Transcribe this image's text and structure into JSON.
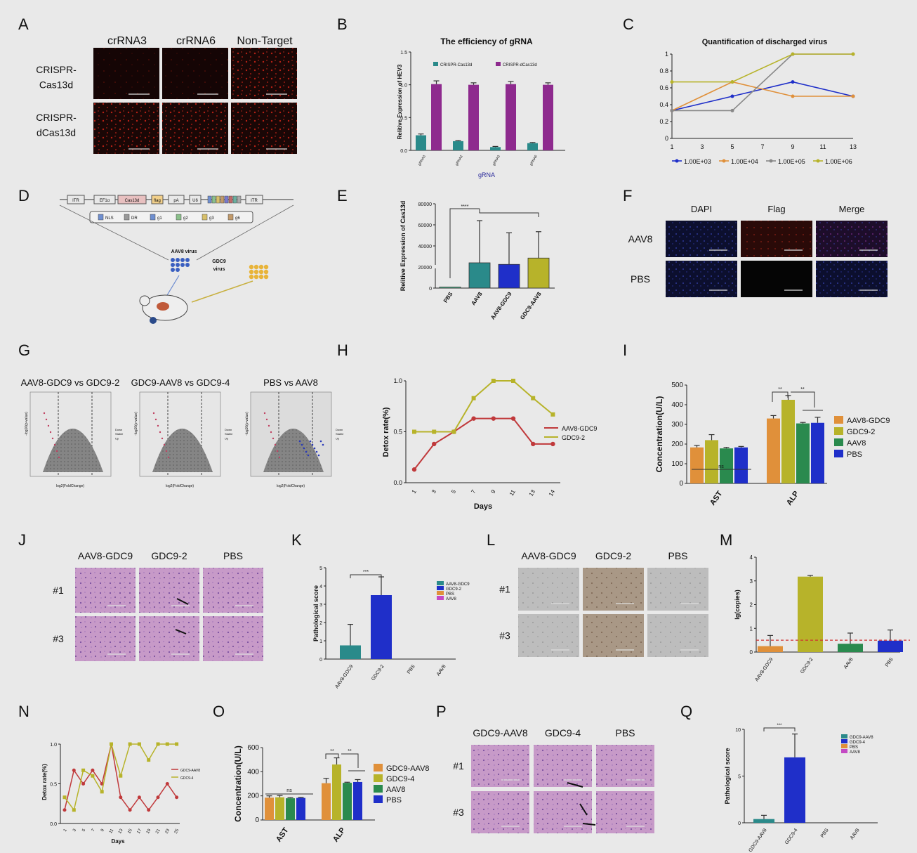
{
  "colors": {
    "bg": "#e9e9e9",
    "teal": "#2a8a8a",
    "purple": "#8e2a8e",
    "blue": "#1f2fc9",
    "yellow": "#b7b32a",
    "green": "#2a8a4e",
    "orange": "#e0903a",
    "red": "#c0393b",
    "gray": "#888888",
    "mint": "#4cc79a",
    "pink": "#c44ac4",
    "dark": "#111111"
  },
  "panels": {
    "A": {
      "letter": "A",
      "cols": [
        "crRNA3",
        "crRNA6",
        "Non-Target"
      ],
      "rows": [
        "CRISPR-\nCas13d",
        "CRISPR-\ndCas13d"
      ]
    },
    "D": {
      "letter": "D",
      "construct": [
        "ITR",
        "EF1α",
        "Cas13d",
        "flag",
        "pA",
        "U6",
        "ITR"
      ],
      "legend": [
        "NLS",
        "DR",
        "g1",
        "g2",
        "g3",
        "g6"
      ],
      "aav_label": "AAV8 virus",
      "gdc_label": "GDC9\nvirus"
    },
    "F": {
      "letter": "F",
      "cols": [
        "DAPI",
        "Flag",
        "Merge"
      ],
      "rows": [
        "AAV8",
        "PBS"
      ]
    },
    "G": {
      "letter": "G",
      "titles": [
        "AAV8-GDC9 vs GDC9-2",
        "GDC9-AAV8 vs GDC9-4",
        "PBS vs AAV8"
      ],
      "xlabels": [
        "log2(FoldChange)",
        "log2(FoldChange)",
        "log2(FoldChange)"
      ],
      "ylabels": [
        "-log10(p-value)",
        "-log10(p-value)",
        "-log10(p-value)"
      ],
      "side": [
        "Down\nStable\nUp",
        "Down\nStable\nUp",
        "Down\nStable\nUp"
      ]
    },
    "J": {
      "letter": "J",
      "cols": [
        "AAV8-GDC9",
        "GDC9-2",
        "PBS"
      ],
      "rows": [
        "#1",
        "#3"
      ]
    },
    "L": {
      "letter": "L",
      "cols": [
        "AAV8-GDC9",
        "GDC9-2",
        "PBS"
      ],
      "rows": [
        "#1",
        "#3"
      ]
    },
    "P": {
      "letter": "P",
      "cols": [
        "GDC9-AAV8",
        "GDC9-4",
        "PBS"
      ],
      "rows": [
        "#1",
        "#3"
      ]
    }
  },
  "chart_data": [
    {
      "id": "B",
      "type": "bar",
      "letter": "B",
      "title": "The efficiency of gRNA",
      "xlabel": "gRNA",
      "ylabel": "Relitive Expression of HEV3",
      "categories": [
        "gRNA3",
        "gRNA2",
        "gRNA3",
        "gRNA6"
      ],
      "series": [
        {
          "name": "CRISPR-Cas13d",
          "values": [
            0.23,
            0.14,
            0.05,
            0.11
          ]
        },
        {
          "name": "CRISPR-dCas13d",
          "values": [
            1.01,
            1.0,
            1.01,
            1.0
          ]
        }
      ],
      "error": [
        [
          0.02,
          0.01,
          0.01,
          0.01
        ],
        [
          0.05,
          0.03,
          0.04,
          0.03
        ]
      ],
      "ylim": [
        0,
        1.5
      ],
      "yticks": [
        "0.0",
        "0.5",
        "1.0",
        "1.5"
      ]
    },
    {
      "id": "C",
      "type": "line",
      "letter": "C",
      "title": "Quantification of discharged virus",
      "x": [
        1,
        3,
        5,
        7,
        9,
        11,
        13
      ],
      "xticks": [
        "1",
        "3",
        "5",
        "7",
        "9",
        "11",
        "13"
      ],
      "ylim": [
        0,
        1
      ],
      "yticks": [
        "0",
        "0.2",
        "0.4",
        "0.6",
        "0.8",
        "1"
      ],
      "series": [
        {
          "name": "1.00E+03",
          "points": [
            [
              1,
              0.33
            ],
            [
              5,
              0.5
            ],
            [
              9,
              0.67
            ],
            [
              13,
              0.5
            ]
          ]
        },
        {
          "name": "1.00E+04",
          "points": [
            [
              1,
              0.33
            ],
            [
              5,
              0.67
            ],
            [
              9,
              0.5
            ],
            [
              13,
              0.5
            ]
          ]
        },
        {
          "name": "1.00E+05",
          "points": [
            [
              1,
              0.33
            ],
            [
              5,
              0.33
            ],
            [
              9,
              1.0
            ],
            [
              13,
              1.0
            ]
          ]
        },
        {
          "name": "1.00E+06",
          "points": [
            [
              1,
              0.67
            ],
            [
              5,
              0.67
            ],
            [
              9,
              1.0
            ],
            [
              13,
              1.0
            ]
          ]
        }
      ]
    },
    {
      "id": "E",
      "type": "bar",
      "letter": "E",
      "ylabel": "Relitive Expression of Cas13d",
      "categories": [
        "PBS",
        "AAV8",
        "AAV8-GDC9",
        "GDC9-AAV8"
      ],
      "values": [
        1000,
        24000,
        22500,
        28500
      ],
      "error": [
        0,
        40000,
        30000,
        25000
      ],
      "ylim": [
        0,
        80000
      ],
      "yticks": [
        "0",
        "20000",
        "40000",
        "60000",
        "80000"
      ],
      "sig": "****"
    },
    {
      "id": "H",
      "type": "line",
      "letter": "H",
      "xlabel": "Days",
      "ylabel": "Detox rate(%)",
      "xticks": [
        "1",
        "3",
        "5",
        "7",
        "9",
        "11",
        "13",
        "14"
      ],
      "ylim": [
        0,
        1
      ],
      "yticks": [
        "0.0",
        "0.5",
        "1.0"
      ],
      "series": [
        {
          "name": "AAV8-GDC9",
          "values": [
            0.13,
            0.38,
            0.5,
            0.63,
            0.63,
            0.63,
            0.38,
            0.38
          ]
        },
        {
          "name": "GDC9-2",
          "values": [
            0.5,
            0.5,
            0.5,
            0.83,
            1.0,
            1.0,
            0.83,
            0.67
          ]
        }
      ]
    },
    {
      "id": "I",
      "type": "bar",
      "letter": "I",
      "ylabel": "Concentration(U/L)",
      "categories": [
        "AST",
        "ALP"
      ],
      "series": [
        {
          "name": "AAV8-GDC9",
          "values": [
            183,
            330
          ]
        },
        {
          "name": "GDC9-2",
          "values": [
            220,
            425
          ]
        },
        {
          "name": "AAV8",
          "values": [
            178,
            305
          ]
        },
        {
          "name": "PBS",
          "values": [
            183,
            308
          ]
        }
      ],
      "error": [
        [
          10,
          15
        ],
        [
          28,
          22
        ],
        [
          5,
          5
        ],
        [
          5,
          28
        ]
      ],
      "ylim": [
        0,
        500
      ],
      "yticks": [
        "0",
        "100",
        "200",
        "300",
        "400",
        "500"
      ],
      "sig_labels": [
        "ns",
        "**",
        "**"
      ]
    },
    {
      "id": "K",
      "type": "bar",
      "letter": "K",
      "ylabel": "Pathological score",
      "categories": [
        "AAV8-GDC9",
        "GDC9-2",
        "PBS",
        "AAV8"
      ],
      "values": [
        0.75,
        3.5,
        0,
        0
      ],
      "error": [
        1.15,
        1.0,
        0,
        0
      ],
      "ylim": [
        0,
        5
      ],
      "yticks": [
        "0",
        "1",
        "2",
        "3",
        "4",
        "5"
      ],
      "legend": [
        "AAV8-GDC9",
        "GDC9-2",
        "PBS",
        "AAV8"
      ],
      "sig": "***"
    },
    {
      "id": "M",
      "type": "bar",
      "letter": "M",
      "ylabel": "lg(copies)",
      "categories": [
        "AAV8-GDC9",
        "GDC9-2",
        "AAV8",
        "PBS"
      ],
      "values": [
        0.25,
        3.18,
        0.35,
        0.48
      ],
      "error": [
        0.45,
        0.05,
        0.45,
        0.45
      ],
      "ylim": [
        0,
        4
      ],
      "yticks": [
        "0",
        "1",
        "2",
        "3",
        "4"
      ],
      "threshold": 0.5
    },
    {
      "id": "N",
      "type": "line",
      "letter": "N",
      "xlabel": "Days",
      "ylabel": "Detox rate(%)",
      "xticks": [
        "1",
        "3",
        "5",
        "7",
        "9",
        "11",
        "13",
        "15",
        "17",
        "19",
        "21",
        "23",
        "25"
      ],
      "ylim": [
        0,
        1
      ],
      "yticks": [
        "0.0",
        "0.5",
        "1.0"
      ],
      "series": [
        {
          "name": "GDC9-AAV8",
          "values": [
            0.17,
            0.67,
            0.5,
            0.67,
            0.5,
            1.0,
            0.33,
            0.17,
            0.33,
            0.17,
            0.33,
            0.5,
            0.33
          ]
        },
        {
          "name": "GDC9-4",
          "values": [
            0.33,
            0.17,
            0.67,
            0.6,
            0.4,
            1.0,
            0.6,
            1.0,
            1.0,
            0.8,
            1.0,
            1.0,
            1.0
          ]
        }
      ]
    },
    {
      "id": "O",
      "type": "bar",
      "letter": "O",
      "ylabel": "Concentration(U/L)",
      "categories": [
        "AST",
        "ALP"
      ],
      "series": [
        {
          "name": "GDC9-AAV8",
          "values": [
            185,
            305
          ]
        },
        {
          "name": "GDC9-4",
          "values": [
            188,
            460
          ]
        },
        {
          "name": "AAV8",
          "values": [
            180,
            308
          ]
        },
        {
          "name": "PBS",
          "values": [
            183,
            315
          ]
        }
      ],
      "error": [
        [
          15,
          40
        ],
        [
          15,
          55
        ],
        [
          5,
          5
        ],
        [
          5,
          20
        ]
      ],
      "ylim": [
        0,
        600
      ],
      "yticks": [
        "0",
        "200",
        "400",
        "600"
      ],
      "sig_labels": [
        "ns",
        "**",
        "**"
      ]
    },
    {
      "id": "Q",
      "type": "bar",
      "letter": "Q",
      "ylabel": "Pathological score",
      "categories": [
        "GDC9-AAV8",
        "GDC9-4",
        "PBS",
        "AAV8"
      ],
      "values": [
        0.4,
        7.0,
        0,
        0
      ],
      "error": [
        0.4,
        2.5,
        0,
        0
      ],
      "ylim": [
        0,
        10
      ],
      "yticks": [
        "0",
        "5",
        "10"
      ],
      "legend": [
        "GDC9-AAV8",
        "GDC9-4",
        "PBS",
        "AAV8"
      ],
      "sig": "***"
    }
  ]
}
